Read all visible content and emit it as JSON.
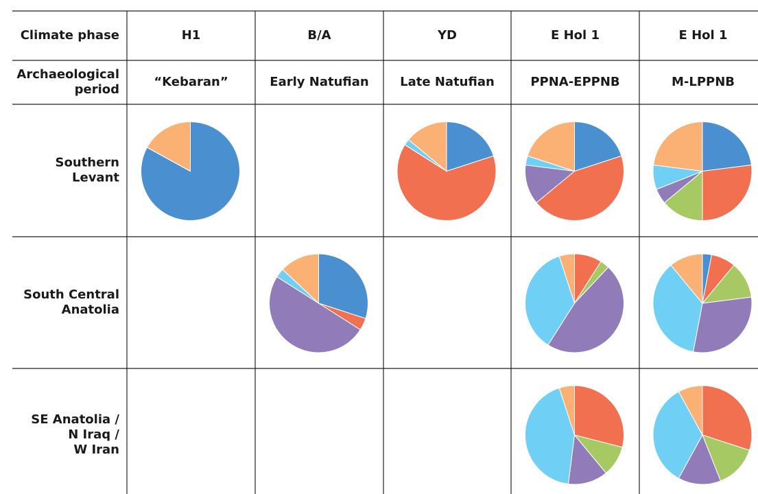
{
  "slice_colors": [
    "#4a8fcf",
    "#f07050",
    "#a6c964",
    "#917bb8",
    "#6fcff4",
    "#fbb173"
  ],
  "table": {
    "header": {
      "label": "Climate phase",
      "phases": [
        "H1",
        "B/A",
        "YD",
        "E Hol 1",
        "E Hol 1"
      ]
    },
    "period_row": {
      "label": [
        "Archaeological",
        "period"
      ],
      "periods": [
        "“Kebaran”",
        "Early Natufian",
        "Late Natufian",
        "PPNA-EPPNB",
        "M-LPPNB"
      ]
    },
    "rows": [
      {
        "region": [
          "Southern",
          "Levant"
        ],
        "pies": [
          [
            83,
            0,
            0,
            0,
            0,
            17
          ],
          null,
          [
            20,
            64,
            0,
            0,
            2,
            14
          ],
          [
            20,
            44,
            0,
            13,
            3,
            20
          ],
          [
            23,
            27,
            14,
            5,
            8,
            23
          ]
        ]
      },
      {
        "region": [
          "South Central",
          "Anatolia"
        ],
        "pies": [
          null,
          [
            30,
            4,
            0,
            50,
            3,
            13
          ],
          null,
          [
            0,
            9,
            3,
            47,
            36,
            5
          ],
          [
            3,
            8,
            12,
            30,
            36,
            11
          ]
        ]
      },
      {
        "region": [
          "SE Anatolia /",
          "N Iraq /",
          "W Iran"
        ],
        "pies": [
          null,
          null,
          null,
          [
            0,
            29,
            10,
            13,
            43,
            5
          ],
          [
            0,
            30,
            14,
            14,
            34,
            8
          ]
        ]
      }
    ]
  }
}
